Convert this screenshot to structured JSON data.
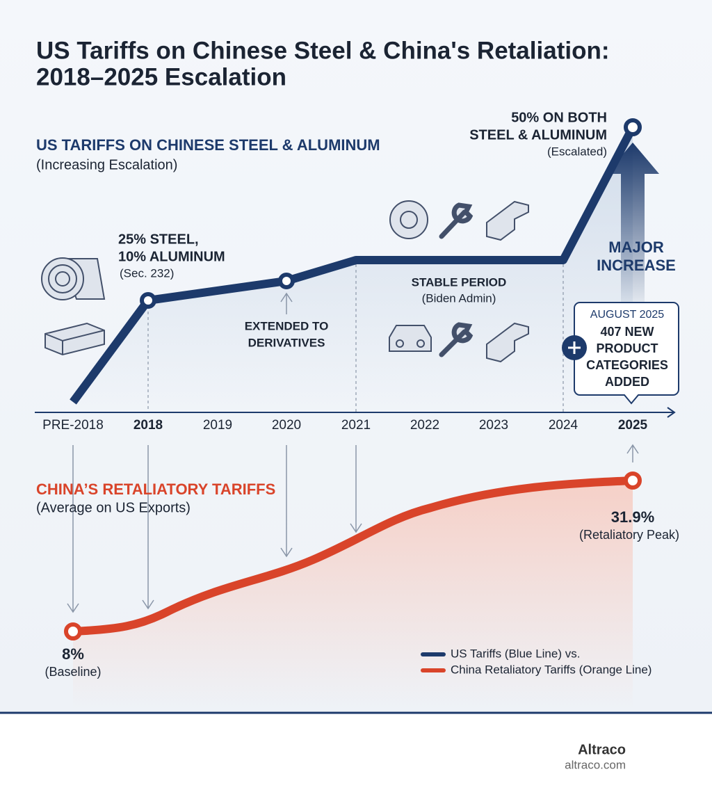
{
  "header": {
    "title_line1": "US Tariffs on Chinese Steel & China's Retaliation:",
    "title_line2": "2018–2025 Escalation"
  },
  "us_section": {
    "heading": "US TARIFFS ON CHINESE STEEL & ALUMINUM",
    "subheading": "(Increasing Escalation)"
  },
  "china_section": {
    "heading": "CHINA’S RETALIATORY TARIFFS",
    "subheading": "(Average on US Exports)"
  },
  "axis": {
    "categories": [
      "PRE-2018",
      "2018",
      "2019",
      "2020",
      "2021",
      "2022",
      "2023",
      "2024",
      "2025"
    ]
  },
  "annotations": {
    "y2018": {
      "line1": "25% STEEL,",
      "line2": "10% ALUMINUM",
      "note": "(Sec. 232)"
    },
    "y2020": {
      "line1": "EXTENDED TO",
      "line2": "DERIVATIVES"
    },
    "stable": {
      "line1": "STABLE PERIOD",
      "note": "(Biden Admin)"
    },
    "y2025": {
      "line1": "50% ON BOTH",
      "line2": "STEEL & ALUMINUM",
      "note": "(Escalated)"
    },
    "major": {
      "line1": "MAJOR",
      "line2": "INCREASE"
    },
    "callout": {
      "date": "AUGUST 2025",
      "line1": "407 NEW",
      "line2": "PRODUCT",
      "line3": "CATEGORIES",
      "line4": "ADDED"
    },
    "peak": {
      "value": "31.9%",
      "note": "(Retaliatory Peak)"
    },
    "baseline": {
      "value": "8%",
      "note": "(Baseline)"
    }
  },
  "legend": {
    "us": "US Tariffs (Blue Line) vs.",
    "china": "China Retaliatory Tariffs (Orange Line)"
  },
  "footer": {
    "brand": "Altraco",
    "url": "altraco.com"
  }
}
